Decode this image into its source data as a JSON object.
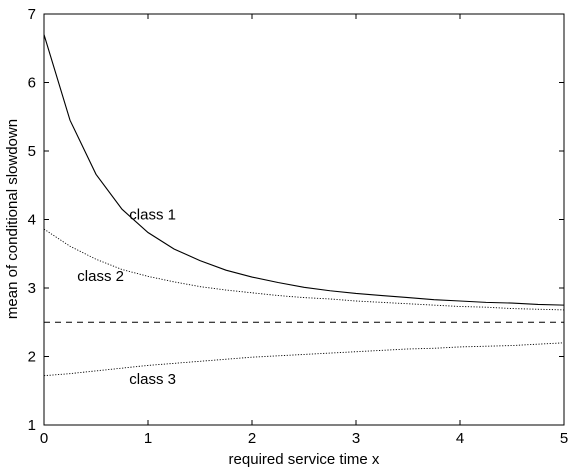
{
  "chart_data": {
    "type": "line",
    "title": "",
    "xlabel": "required service time x",
    "ylabel": "mean of conditional slowdown",
    "xlim": [
      0,
      5
    ],
    "ylim": [
      1,
      7
    ],
    "x_ticks": [
      0,
      1,
      2,
      3,
      4,
      5
    ],
    "y_ticks": [
      1,
      2,
      3,
      4,
      5,
      6,
      7
    ],
    "x_tick_labels": [
      "0",
      "1",
      "2",
      "3",
      "4",
      "5"
    ],
    "y_tick_labels": [
      "1",
      "2",
      "3",
      "4",
      "5",
      "6",
      "7"
    ],
    "grid": false,
    "legend": "none",
    "x": [
      0,
      0.25,
      0.5,
      0.75,
      1,
      1.25,
      1.5,
      1.75,
      2,
      2.25,
      2.5,
      2.75,
      3,
      3.25,
      3.5,
      3.75,
      4,
      4.25,
      4.5,
      4.75,
      5
    ],
    "series": [
      {
        "name": "class 1",
        "style": "solid",
        "values": [
          6.7,
          5.45,
          4.66,
          4.15,
          3.81,
          3.57,
          3.4,
          3.26,
          3.16,
          3.08,
          3.01,
          2.96,
          2.92,
          2.89,
          2.86,
          2.83,
          2.81,
          2.79,
          2.78,
          2.76,
          2.75
        ]
      },
      {
        "name": "class 2",
        "style": "dotted",
        "values": [
          3.86,
          3.61,
          3.42,
          3.27,
          3.17,
          3.09,
          3.02,
          2.97,
          2.93,
          2.89,
          2.86,
          2.84,
          2.81,
          2.79,
          2.77,
          2.75,
          2.73,
          2.72,
          2.7,
          2.69,
          2.68
        ]
      },
      {
        "name": "",
        "style": "dashed",
        "values": [
          2.5,
          2.5,
          2.5,
          2.5,
          2.5,
          2.5,
          2.5,
          2.5,
          2.5,
          2.5,
          2.5,
          2.5,
          2.5,
          2.5,
          2.5,
          2.5,
          2.5,
          2.5,
          2.5,
          2.5,
          2.5
        ]
      },
      {
        "name": "class 3",
        "style": "dotted",
        "values": [
          1.72,
          1.75,
          1.79,
          1.83,
          1.87,
          1.9,
          1.93,
          1.96,
          1.99,
          2.01,
          2.03,
          2.05,
          2.07,
          2.09,
          2.11,
          2.12,
          2.14,
          2.15,
          2.16,
          2.18,
          2.2
        ]
      }
    ],
    "annotations": [
      {
        "text": "class 1",
        "x": 0.82,
        "y": 4.0
      },
      {
        "text": "class 2",
        "x": 0.32,
        "y": 3.1
      },
      {
        "text": "class 3",
        "x": 0.82,
        "y": 1.6
      }
    ]
  }
}
